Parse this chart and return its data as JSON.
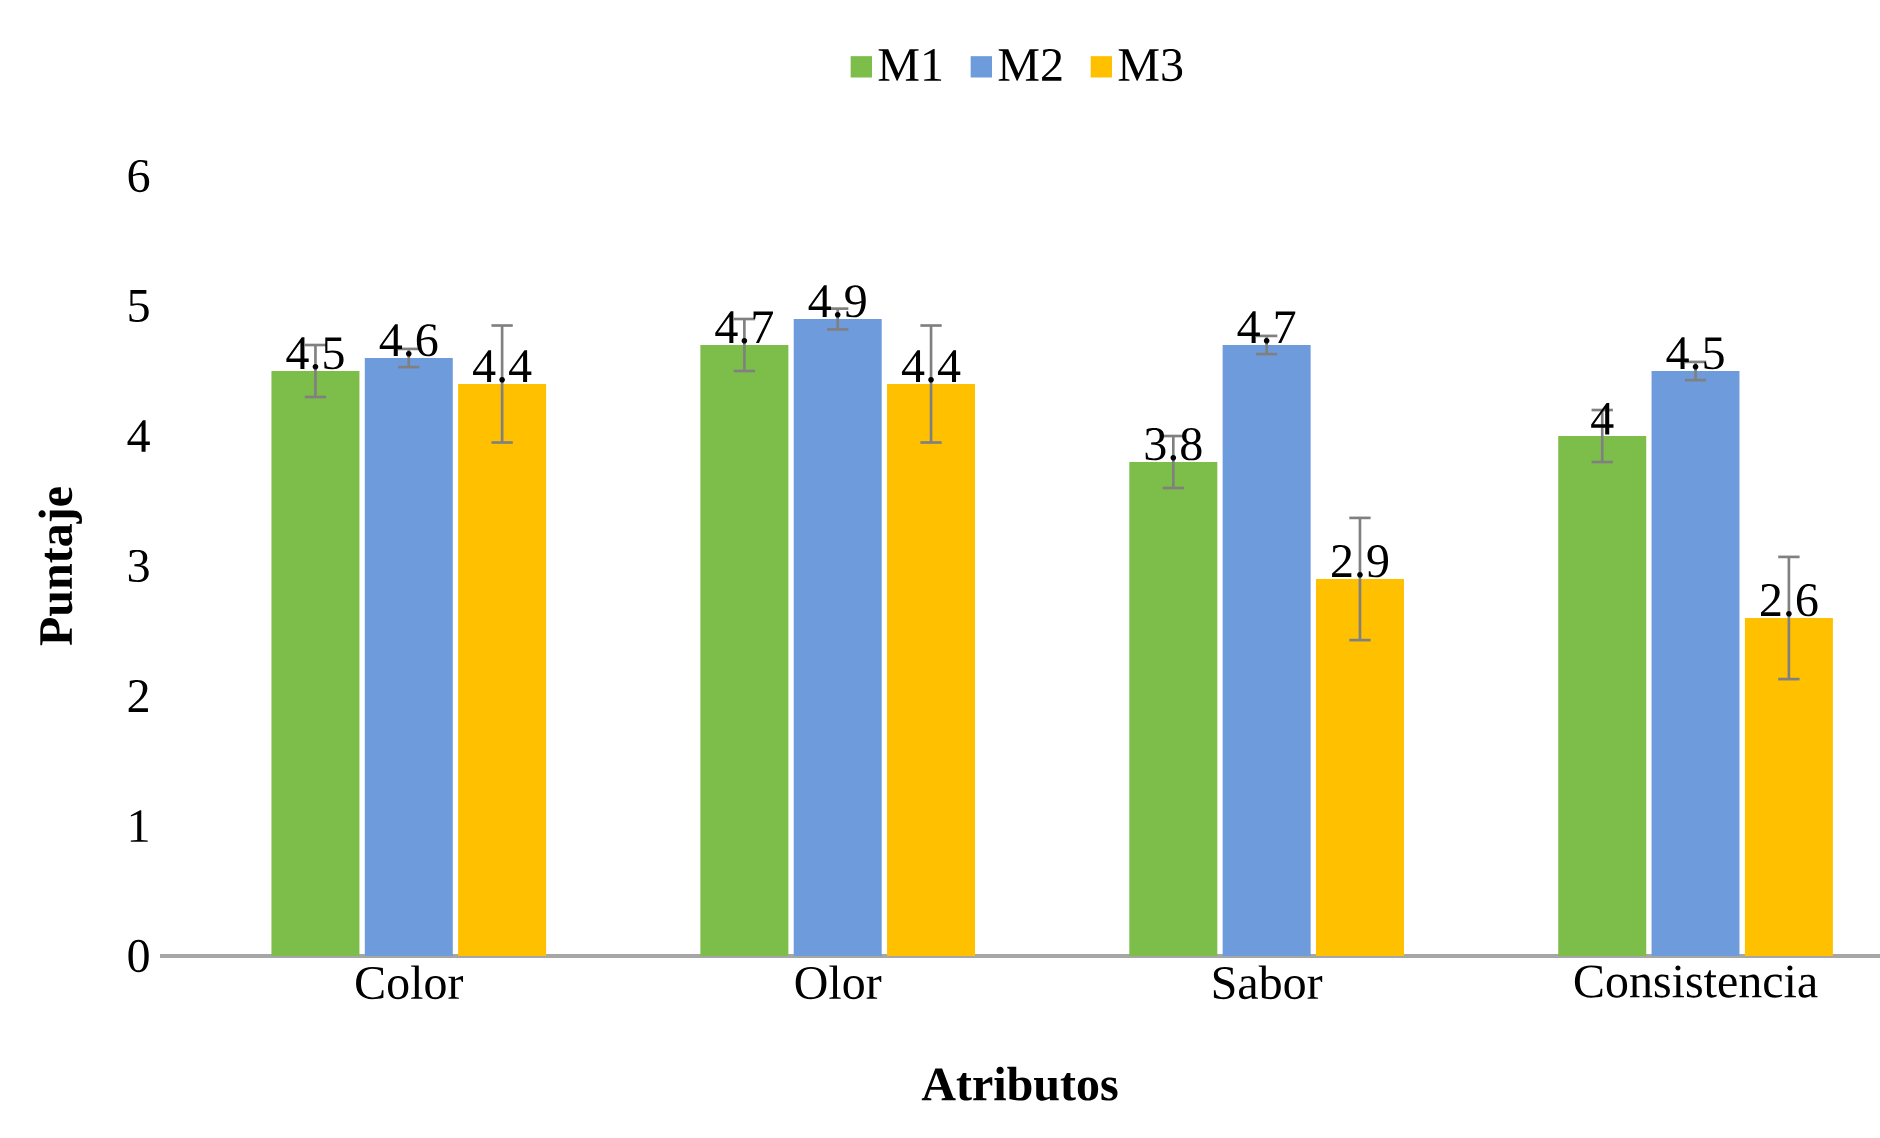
{
  "chart_data": {
    "type": "bar",
    "xlabel": "Atributos",
    "ylabel": "Puntaje",
    "categories": [
      "Color",
      "Olor",
      "Sabor",
      "Consistencia"
    ],
    "series": [
      {
        "name": "M1",
        "color": "#7dbd4a",
        "values": [
          4.5,
          4.7,
          3.8,
          4
        ],
        "errors": [
          0.2,
          0.2,
          0.2,
          0.2
        ]
      },
      {
        "name": "M2",
        "color": "#6e9bdb",
        "values": [
          4.6,
          4.9,
          4.7,
          4.5
        ],
        "errors": [
          0.07,
          0.08,
          0.07,
          0.07
        ]
      },
      {
        "name": "M3",
        "color": "#ffc000",
        "values": [
          4.4,
          4.4,
          2.9,
          2.6
        ],
        "errors": [
          0.45,
          0.45,
          0.47,
          0.47
        ]
      }
    ],
    "ylim": [
      0,
      6
    ],
    "yticks": [
      0,
      1,
      2,
      3,
      4,
      5,
      6
    ],
    "data_labels": true,
    "legend": "top",
    "grid": false
  }
}
